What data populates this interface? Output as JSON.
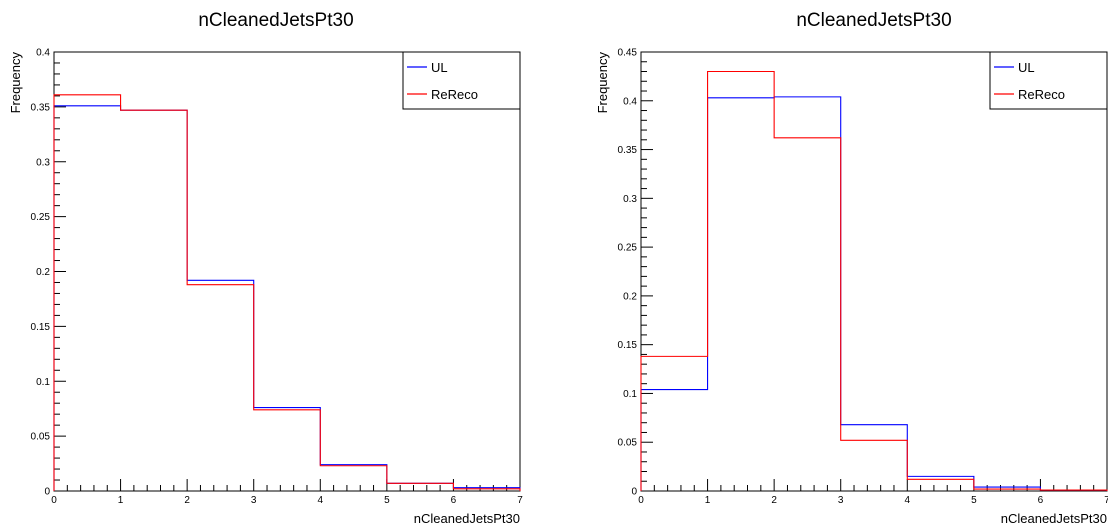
{
  "chart_data": [
    {
      "type": "histogram",
      "title": "nCleanedJetsPt30",
      "xlabel": "nCleanedJetsPt30",
      "ylabel": "Frequency",
      "xlim": [
        0,
        7
      ],
      "ylim": [
        0,
        0.4
      ],
      "y_ticks": [
        0,
        0.05,
        0.1,
        0.15,
        0.2,
        0.25,
        0.3,
        0.35,
        0.4
      ],
      "y_tick_labels": [
        "0",
        "0.05",
        "0.1",
        "0.15",
        "0.2",
        "0.25",
        "0.3",
        "0.35",
        "0.4"
      ],
      "x_ticks": [
        0,
        1,
        2,
        3,
        4,
        5,
        6,
        7
      ],
      "x_tick_labels": [
        "0",
        "1",
        "2",
        "3",
        "4",
        "5",
        "6",
        "7"
      ],
      "bin_edges": [
        0,
        1,
        2,
        3,
        4,
        5,
        6,
        7
      ],
      "legend_position": "top-right",
      "series": [
        {
          "name": "UL",
          "color": "#0000ff",
          "values": [
            0.351,
            0.347,
            0.192,
            0.076,
            0.024,
            0.007,
            0.003
          ]
        },
        {
          "name": "ReReco",
          "color": "#ff0000",
          "values": [
            0.361,
            0.347,
            0.188,
            0.074,
            0.023,
            0.007,
            0.002
          ]
        }
      ]
    },
    {
      "type": "histogram",
      "title": "nCleanedJetsPt30",
      "xlabel": "nCleanedJetsPt30",
      "ylabel": "Frequency",
      "xlim": [
        0,
        7
      ],
      "ylim": [
        0,
        0.45
      ],
      "y_ticks": [
        0,
        0.05,
        0.1,
        0.15,
        0.2,
        0.25,
        0.3,
        0.35,
        0.4,
        0.45
      ],
      "y_tick_labels": [
        "0",
        "0.05",
        "0.1",
        "0.15",
        "0.2",
        "0.25",
        "0.3",
        "0.35",
        "0.4",
        "0.45"
      ],
      "x_ticks": [
        0,
        1,
        2,
        3,
        4,
        5,
        6,
        7
      ],
      "x_tick_labels": [
        "0",
        "1",
        "2",
        "3",
        "4",
        "5",
        "6",
        "7"
      ],
      "bin_edges": [
        0,
        1,
        2,
        3,
        4,
        5,
        6,
        7
      ],
      "legend_position": "top-right",
      "series": [
        {
          "name": "UL",
          "color": "#0000ff",
          "values": [
            0.104,
            0.403,
            0.404,
            0.068,
            0.015,
            0.004,
            0.001
          ]
        },
        {
          "name": "ReReco",
          "color": "#ff0000",
          "values": [
            0.138,
            0.43,
            0.362,
            0.052,
            0.012,
            0.002,
            0.001
          ]
        }
      ]
    }
  ]
}
